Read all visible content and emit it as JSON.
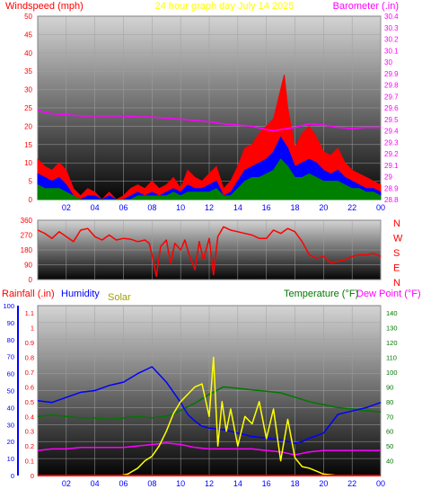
{
  "header": {
    "left_title": "Windspeed (mph)",
    "center_title": "24 hour graph day   July 14 2025",
    "right_title": "Barometer (.in)"
  },
  "colors": {
    "red": "#ff0000",
    "blue": "#0000ff",
    "green": "#008000",
    "magenta": "#ff00ff",
    "yellow": "#ffff00",
    "olive": "#a0a000",
    "darkgreen": "#007700"
  },
  "chart_data": [
    {
      "type": "line",
      "name": "wind-barometer",
      "xlabel": "",
      "x_ticks": [
        "02",
        "04",
        "06",
        "08",
        "10",
        "12",
        "14",
        "16",
        "18",
        "20",
        "22",
        "00"
      ],
      "x_range_hours": [
        0,
        24
      ],
      "ylabel_left": "Windspeed (mph)",
      "ylim_left": [
        0,
        50
      ],
      "y_ticks_left": [
        "0",
        "5",
        "10",
        "15",
        "20",
        "25",
        "30",
        "35",
        "40",
        "45",
        "50"
      ],
      "ylabel_right": "Barometer (.in)",
      "ylim_right": [
        28.8,
        30.4
      ],
      "y_ticks_right": [
        "28.8",
        "28.9",
        "29",
        "29.1",
        "29.2",
        "29.3",
        "29.4",
        "29.5",
        "29.6",
        "29.7",
        "29.8",
        "29.9",
        "30",
        "30.1",
        "30.2",
        "30.3",
        "30.4"
      ],
      "series": [
        {
          "name": "Barometer",
          "axis": "right",
          "color": "#ff00ff",
          "x": [
            0,
            0.5,
            1,
            2,
            3,
            4,
            5,
            6,
            7,
            8,
            9,
            10,
            11,
            12,
            13,
            14,
            15,
            16,
            16.5,
            17,
            18,
            19,
            20,
            21,
            22,
            23,
            24
          ],
          "y": [
            29.58,
            29.56,
            29.55,
            29.54,
            29.53,
            29.53,
            29.53,
            29.53,
            29.52,
            29.52,
            29.51,
            29.5,
            29.49,
            29.48,
            29.46,
            29.45,
            29.44,
            29.41,
            29.4,
            29.41,
            29.43,
            29.46,
            29.45,
            29.43,
            29.42,
            29.43,
            29.43
          ]
        },
        {
          "name": "Wind Gust",
          "axis": "left",
          "color": "#ff0000",
          "x": [
            0,
            0.5,
            1,
            1.5,
            2,
            2.5,
            3,
            3.5,
            4,
            4.5,
            5,
            5.5,
            6,
            6.5,
            7,
            7.5,
            8,
            8.5,
            9,
            9.5,
            10,
            10.5,
            11,
            11.5,
            12,
            12.5,
            13,
            13.5,
            14,
            14.5,
            15,
            15.5,
            16,
            16.5,
            17,
            17.25,
            17.5,
            18,
            18.5,
            19,
            19.5,
            20,
            20.5,
            21,
            21.5,
            22,
            22.5,
            23,
            23.5,
            24
          ],
          "y": [
            11,
            9,
            8,
            10,
            8,
            3,
            1,
            3,
            2,
            0,
            2,
            0,
            1,
            3,
            4,
            3,
            5,
            3,
            4,
            6,
            3,
            8,
            6,
            5,
            7,
            9,
            3,
            5,
            9,
            14,
            15,
            18,
            20,
            22,
            30,
            34,
            25,
            14,
            18,
            20,
            17,
            13,
            12,
            14,
            10,
            8,
            7,
            6,
            5,
            4
          ]
        },
        {
          "name": "Wind Speed",
          "axis": "left",
          "color": "#0000ff",
          "x": [
            0,
            0.5,
            1,
            1.5,
            2,
            2.5,
            3,
            3.5,
            4,
            4.5,
            5,
            5.5,
            6,
            6.5,
            7,
            7.5,
            8,
            8.5,
            9,
            9.5,
            10,
            10.5,
            11,
            11.5,
            12,
            12.5,
            13,
            13.5,
            14,
            14.5,
            15,
            15.5,
            16,
            16.5,
            17,
            17.5,
            18,
            18.5,
            19,
            19.5,
            20,
            20.5,
            21,
            21.5,
            22,
            22.5,
            23,
            23.5,
            24
          ],
          "y": [
            7,
            6,
            5,
            6,
            4,
            1,
            0,
            1,
            1,
            0,
            1,
            0,
            0,
            1,
            2,
            1,
            2,
            1,
            2,
            3,
            2,
            4,
            3,
            3,
            4,
            5,
            1,
            2,
            5,
            8,
            9,
            10,
            11,
            13,
            17,
            14,
            9,
            10,
            11,
            10,
            8,
            7,
            8,
            6,
            5,
            4,
            3,
            3,
            2
          ]
        },
        {
          "name": "Wind Average",
          "axis": "left",
          "color": "#008000",
          "x": [
            0,
            0.5,
            1,
            1.5,
            2,
            2.5,
            3,
            3.5,
            4,
            4.5,
            5,
            5.5,
            6,
            6.5,
            7,
            7.5,
            8,
            8.5,
            9,
            9.5,
            10,
            10.5,
            11,
            11.5,
            12,
            12.5,
            13,
            13.5,
            14,
            14.5,
            15,
            15.5,
            16,
            16.5,
            17,
            17.5,
            18,
            18.5,
            19,
            19.5,
            20,
            20.5,
            21,
            21.5,
            22,
            22.5,
            23,
            23.5,
            24
          ],
          "y": [
            4,
            3,
            3,
            3,
            2,
            1,
            0,
            0,
            0,
            0,
            0,
            0,
            0,
            0,
            1,
            1,
            1,
            1,
            1,
            2,
            1,
            2,
            2,
            2,
            2,
            3,
            1,
            1,
            3,
            5,
            6,
            6,
            7,
            8,
            11,
            9,
            6,
            6,
            7,
            6,
            5,
            5,
            5,
            4,
            3,
            3,
            2,
            2,
            1
          ]
        }
      ]
    },
    {
      "type": "line",
      "name": "wind-direction",
      "x_ticks": [],
      "x_range_hours": [
        0,
        24
      ],
      "ylim_left": [
        0,
        360
      ],
      "y_ticks_left": [
        "0",
        "90",
        "180",
        "270",
        "360"
      ],
      "y_ticks_right": [
        "N",
        "E",
        "S",
        "W",
        "N"
      ],
      "series": [
        {
          "name": "Wind Direction",
          "color": "#ff0000",
          "x": [
            0,
            0.5,
            1,
            1.5,
            2,
            2.5,
            3,
            3.5,
            4,
            4.5,
            5,
            5.5,
            6,
            6.5,
            7,
            7.5,
            7.8,
            8,
            8.3,
            8.6,
            9,
            9.3,
            9.6,
            10,
            10.3,
            10.6,
            11,
            11.3,
            11.6,
            12,
            12.3,
            12.6,
            13,
            13.5,
            14,
            14.5,
            15,
            15.5,
            16,
            16.5,
            17,
            17.5,
            18,
            18.5,
            19,
            19.5,
            20,
            20.5,
            21,
            21.5,
            22,
            22.5,
            23,
            23.5,
            24
          ],
          "y": [
            300,
            280,
            250,
            290,
            260,
            230,
            300,
            310,
            260,
            240,
            270,
            240,
            250,
            245,
            230,
            240,
            220,
            150,
            20,
            200,
            240,
            100,
            220,
            180,
            240,
            150,
            60,
            230,
            120,
            250,
            30,
            260,
            320,
            300,
            290,
            280,
            270,
            250,
            250,
            300,
            280,
            310,
            290,
            230,
            150,
            130,
            140,
            100,
            110,
            120,
            140,
            150,
            150,
            160,
            140
          ]
        }
      ]
    },
    {
      "type": "line",
      "name": "rain-humidity-temperature",
      "x_ticks": [
        "02",
        "04",
        "06",
        "08",
        "10",
        "12",
        "14",
        "16",
        "18",
        "20",
        "22",
        "00"
      ],
      "x_range_hours": [
        0,
        24
      ],
      "legend": [
        "Rainfall (.in)",
        "Humidity",
        "Solar",
        "Temperature (°F)",
        "Dew Point (°F)"
      ],
      "ylim_rain": [
        0,
        1.15
      ],
      "y_ticks_rain": [
        "0",
        "0.1",
        "0.2",
        "0.3",
        "0.4",
        "0.5",
        "0.6",
        "0.7",
        "0.8",
        "0.9",
        "1",
        "1.1"
      ],
      "ylim_humidity": [
        0,
        100
      ],
      "y_ticks_humidity": [
        "0",
        "10",
        "20",
        "30",
        "40",
        "50",
        "60",
        "70",
        "80",
        "90",
        "100"
      ],
      "ylim_temp": [
        30,
        145
      ],
      "y_ticks_temp": [
        "40",
        "50",
        "60",
        "70",
        "80",
        "90",
        "100",
        "110",
        "120",
        "130",
        "140"
      ],
      "series": [
        {
          "name": "Humidity",
          "axis": "humidity",
          "color": "#0000ff",
          "x": [
            0,
            1,
            2,
            3,
            4,
            5,
            6,
            7,
            8,
            9,
            10,
            10.5,
            11,
            11.5,
            12,
            13,
            14,
            15,
            16,
            17,
            18,
            18.5,
            19,
            20,
            21,
            22,
            23,
            24
          ],
          "y": [
            44,
            43,
            46,
            49,
            50,
            53,
            55,
            60,
            64,
            55,
            43,
            36,
            32,
            29,
            28,
            27,
            25,
            23,
            22,
            21,
            19,
            20,
            22,
            25,
            36,
            38,
            40,
            43
          ]
        },
        {
          "name": "Temperature",
          "axis": "temp",
          "color": "#007700",
          "x": [
            0,
            1,
            2,
            3,
            4,
            5,
            6,
            7,
            8,
            9,
            10,
            11,
            12,
            13,
            14,
            15,
            16,
            17,
            18,
            19,
            20,
            21,
            22,
            23,
            24
          ],
          "y": [
            70,
            71,
            70,
            69,
            69,
            68,
            69,
            70,
            69,
            70,
            74,
            79,
            85,
            90,
            89,
            88,
            87,
            86,
            83,
            80,
            78,
            76,
            75,
            74,
            73
          ]
        },
        {
          "name": "Dew Point",
          "axis": "temp",
          "color": "#ff00ff",
          "x": [
            0,
            1,
            2,
            3,
            4,
            5,
            6,
            7,
            8,
            9,
            10,
            11,
            12,
            13,
            14,
            15,
            16,
            17,
            18,
            19,
            20,
            21,
            22,
            23,
            24
          ],
          "y": [
            47,
            48,
            48,
            49,
            49,
            49,
            49,
            50,
            51,
            52,
            51,
            49,
            48,
            48,
            48,
            48,
            47,
            46,
            44,
            46,
            47,
            47,
            47,
            47,
            47
          ]
        },
        {
          "name": "Solar",
          "axis": "rain",
          "color": "#ffff00",
          "x": [
            0,
            5,
            5.8,
            6.3,
            7,
            7.5,
            8,
            8.5,
            9,
            9.5,
            10,
            10.5,
            11,
            11.5,
            12,
            12.3,
            12.6,
            12.9,
            13.2,
            13.5,
            14,
            14.5,
            15,
            15.5,
            16,
            16.5,
            17,
            17.5,
            18,
            18.5,
            19,
            19.5,
            20,
            21,
            24
          ],
          "y": [
            0,
            0,
            0,
            0.01,
            0.05,
            0.1,
            0.13,
            0.2,
            0.3,
            0.42,
            0.5,
            0.55,
            0.6,
            0.62,
            0.4,
            0.8,
            0.2,
            0.5,
            0.3,
            0.45,
            0.2,
            0.4,
            0.35,
            0.5,
            0.25,
            0.45,
            0.1,
            0.38,
            0.12,
            0.06,
            0.05,
            0.03,
            0.01,
            0,
            0
          ]
        },
        {
          "name": "Rainfall",
          "axis": "rain",
          "color": "#ff0000",
          "x": [
            0,
            24
          ],
          "y": [
            0,
            0
          ]
        }
      ]
    }
  ]
}
